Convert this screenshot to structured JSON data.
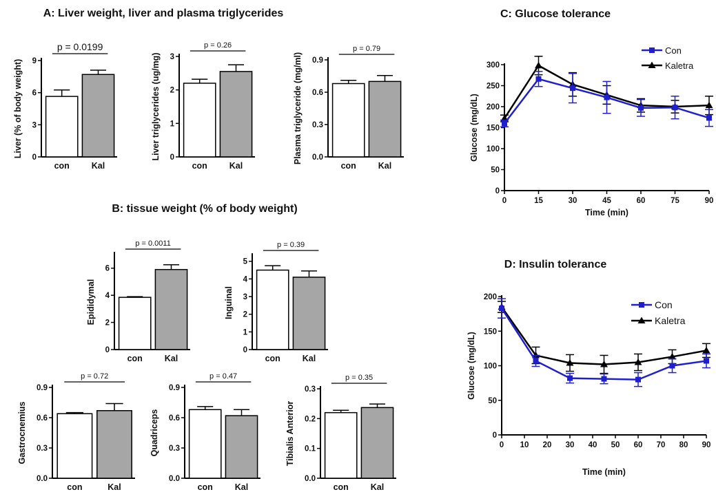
{
  "sections": {
    "A": "A: Liver weight, liver and plasma triglycerides",
    "B": "B: tissue weight (% of body weight)",
    "C": "C: Glucose tolerance",
    "D": "D: Insulin tolerance"
  },
  "colors": {
    "con_fill": "#ffffff",
    "kal_fill": "#a6a6a6",
    "con_line": "#1f1fd0",
    "kal_line": "#000000"
  },
  "chart_data": [
    {
      "id": "liver",
      "type": "bar",
      "ylabel": "Liver (% of body weight)",
      "categories": [
        "con",
        "Kal"
      ],
      "values": [
        5.65,
        7.7
      ],
      "errors": [
        0.6,
        0.4
      ],
      "ylim": [
        0,
        9
      ],
      "yticks": [
        "0",
        "3",
        "6",
        "9"
      ],
      "p_label": "p = 0.0199"
    },
    {
      "id": "liver-tg",
      "type": "bar",
      "ylabel": "Liver triglycerides (ug/mg)",
      "categories": [
        "con",
        "Kal"
      ],
      "values": [
        2.2,
        2.55
      ],
      "errors": [
        0.12,
        0.2
      ],
      "ylim": [
        0,
        3
      ],
      "yticks": [
        "0",
        "1",
        "2",
        "3"
      ],
      "p_label": "p = 0.26"
    },
    {
      "id": "plasma-tg",
      "type": "bar",
      "ylabel": "Plasma triglyceride (mg/ml)",
      "categories": [
        "con",
        "Kal"
      ],
      "values": [
        0.68,
        0.7
      ],
      "errors": [
        0.03,
        0.055
      ],
      "ylim": [
        0,
        0.9
      ],
      "yticks": [
        "0.0",
        "0.3",
        "0.6",
        "0.9"
      ],
      "p_label": "p = 0.79"
    },
    {
      "id": "epididymal",
      "type": "bar",
      "ylabel": "Epididymal",
      "categories": [
        "con",
        "Kal"
      ],
      "values": [
        3.85,
        5.9
      ],
      "errors": [
        0.05,
        0.35
      ],
      "ylim": [
        0,
        7
      ],
      "yticks": [
        "0",
        "2",
        "4",
        "6"
      ],
      "p_label": "p = 0.0011"
    },
    {
      "id": "inguinal",
      "type": "bar",
      "ylabel": "Inguinal",
      "categories": [
        "con",
        "Kal"
      ],
      "values": [
        4.5,
        4.1
      ],
      "errors": [
        0.25,
        0.35
      ],
      "ylim": [
        0,
        5.3
      ],
      "yticks": [
        "0",
        "1",
        "2",
        "3",
        "4",
        "5"
      ],
      "p_label": "p = 0.39"
    },
    {
      "id": "gastrocnemius",
      "type": "bar",
      "ylabel": "Gastrocnemius",
      "categories": [
        "con",
        "Kal"
      ],
      "values": [
        0.64,
        0.67
      ],
      "errors": [
        0.01,
        0.07
      ],
      "ylim": [
        0,
        0.9
      ],
      "yticks": [
        "0.0",
        "0.3",
        "0.6",
        "0.9"
      ],
      "p_label": "p = 0.72"
    },
    {
      "id": "quadriceps",
      "type": "bar",
      "ylabel": "Quadriceps",
      "categories": [
        "con",
        "Kal"
      ],
      "values": [
        0.68,
        0.62
      ],
      "errors": [
        0.03,
        0.06
      ],
      "ylim": [
        0,
        0.9
      ],
      "yticks": [
        "0.0",
        "0.3",
        "0.6",
        "0.9"
      ],
      "p_label": "p = 0.47"
    },
    {
      "id": "tibialis",
      "type": "bar",
      "ylabel": "Tibialis Anterior",
      "categories": [
        "con",
        "Kal"
      ],
      "values": [
        0.22,
        0.237
      ],
      "errors": [
        0.008,
        0.012
      ],
      "ylim": [
        0,
        0.3
      ],
      "yticks": [
        "0.0",
        "0.1",
        "0.2",
        "0.3"
      ],
      "p_label": "p = 0.35"
    },
    {
      "id": "gtt",
      "type": "line",
      "xlabel": "Time (min)",
      "ylabel": "Glucose (mg/dL)",
      "x": [
        0,
        15,
        30,
        45,
        60,
        75,
        90
      ],
      "xlim": [
        0,
        90
      ],
      "ylim": [
        0,
        300
      ],
      "xticks": [
        "0",
        "15",
        "30",
        "45",
        "60",
        "75",
        "90"
      ],
      "yticks": [
        "0",
        "50",
        "100",
        "150",
        "200",
        "250",
        "300"
      ],
      "legend_position": "top-right",
      "series": [
        {
          "name": "Con",
          "marker": "square",
          "values": [
            160,
            266,
            244,
            222,
            197,
            198,
            173
          ],
          "errors": [
            8,
            18,
            35,
            38,
            20,
            27,
            20
          ]
        },
        {
          "name": "Kaletra",
          "marker": "triangle",
          "values": [
            172,
            298,
            253,
            228,
            203,
            200,
            203
          ],
          "errors": [
            8,
            22,
            28,
            22,
            16,
            15,
            22
          ]
        }
      ]
    },
    {
      "id": "itt",
      "type": "line",
      "xlabel": "Time (min)",
      "ylabel": "Glucose (mg/dL)",
      "x": [
        0,
        15,
        30,
        45,
        60,
        75,
        90
      ],
      "xlim": [
        0,
        90
      ],
      "ylim": [
        0,
        200
      ],
      "xticks": [
        "0",
        "10",
        "20",
        "30",
        "40",
        "50",
        "60",
        "70",
        "80",
        "90"
      ],
      "yticks": [
        "0",
        "50",
        "100",
        "150",
        "200"
      ],
      "legend_position": "top-right",
      "series": [
        {
          "name": "Con",
          "marker": "square",
          "values": [
            183,
            107,
            82,
            81,
            80,
            100,
            107
          ],
          "errors": [
            14,
            8,
            7,
            7,
            10,
            10,
            10
          ]
        },
        {
          "name": "Kaletra",
          "marker": "triangle",
          "values": [
            185,
            115,
            104,
            102,
            105,
            113,
            122
          ],
          "errors": [
            8,
            12,
            12,
            13,
            12,
            10,
            10
          ]
        }
      ]
    }
  ]
}
